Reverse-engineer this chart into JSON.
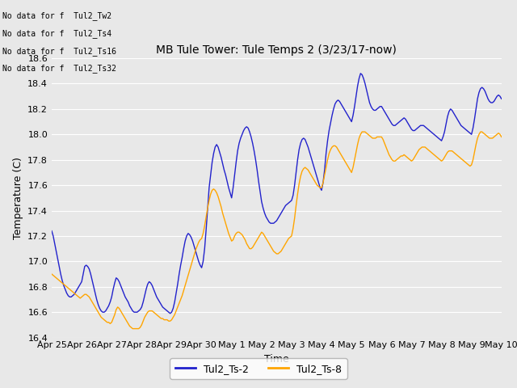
{
  "title": "MB Tule Tower: Tule Temps 2 (3/23/17-now)",
  "xlabel": "Time",
  "ylabel": "Temperature (C)",
  "ylim": [
    16.4,
    18.6
  ],
  "bg_color": "#e8e8e8",
  "line1_color": "#2222cc",
  "line2_color": "#ffa500",
  "legend_entries": [
    "Tul2_Ts-2",
    "Tul2_Ts-8"
  ],
  "no_data_texts": [
    "No data for f  Tul2_Tw2",
    "No data for f  Tul2_Ts4",
    "No data for f  Tul2_Ts16",
    "No data for f  Tul2_Ts32"
  ],
  "x_tick_labels": [
    "Apr 25",
    "Apr 26",
    "Apr 27",
    "Apr 28",
    "Apr 29",
    "Apr 30",
    "May 1",
    "May 2",
    "May 3",
    "May 4",
    "May 5",
    "May 6",
    "May 7",
    "May 8",
    "May 9",
    "May 10"
  ],
  "x_tick_positions": [
    0,
    1,
    2,
    3,
    4,
    5,
    6,
    7,
    8,
    9,
    10,
    11,
    12,
    13,
    14,
    15
  ],
  "ts2_x": [
    0.0,
    0.05,
    0.1,
    0.15,
    0.2,
    0.25,
    0.3,
    0.35,
    0.4,
    0.45,
    0.5,
    0.55,
    0.6,
    0.65,
    0.7,
    0.75,
    0.8,
    0.85,
    0.9,
    0.95,
    1.0,
    1.05,
    1.1,
    1.15,
    1.2,
    1.25,
    1.3,
    1.35,
    1.4,
    1.45,
    1.5,
    1.55,
    1.6,
    1.65,
    1.7,
    1.75,
    1.8,
    1.85,
    1.9,
    1.95,
    2.0,
    2.05,
    2.1,
    2.15,
    2.2,
    2.25,
    2.3,
    2.35,
    2.4,
    2.45,
    2.5,
    2.55,
    2.6,
    2.65,
    2.7,
    2.75,
    2.8,
    2.85,
    2.9,
    2.95,
    3.0,
    3.05,
    3.1,
    3.15,
    3.2,
    3.25,
    3.3,
    3.35,
    3.4,
    3.45,
    3.5,
    3.55,
    3.6,
    3.65,
    3.7,
    3.75,
    3.8,
    3.85,
    3.9,
    3.95,
    4.0,
    4.05,
    4.1,
    4.15,
    4.2,
    4.25,
    4.3,
    4.35,
    4.4,
    4.45,
    4.5,
    4.55,
    4.6,
    4.65,
    4.7,
    4.75,
    4.8,
    4.85,
    4.9,
    4.95,
    5.0,
    5.05,
    5.1,
    5.15,
    5.2,
    5.25,
    5.3,
    5.35,
    5.4,
    5.45,
    5.5,
    5.55,
    5.6,
    5.65,
    5.7,
    5.75,
    5.8,
    5.85,
    5.9,
    5.95,
    6.0,
    6.05,
    6.1,
    6.15,
    6.2,
    6.25,
    6.3,
    6.35,
    6.4,
    6.45,
    6.5,
    6.55,
    6.6,
    6.65,
    6.7,
    6.75,
    6.8,
    6.85,
    6.9,
    6.95,
    7.0,
    7.05,
    7.1,
    7.15,
    7.2,
    7.25,
    7.3,
    7.35,
    7.4,
    7.45,
    7.5,
    7.55,
    7.6,
    7.65,
    7.7,
    7.75,
    7.8,
    7.85,
    7.9,
    7.95,
    8.0,
    8.05,
    8.1,
    8.15,
    8.2,
    8.25,
    8.3,
    8.35,
    8.4,
    8.45,
    8.5,
    8.55,
    8.6,
    8.65,
    8.7,
    8.75,
    8.8,
    8.85,
    8.9,
    8.95,
    9.0,
    9.05,
    9.1,
    9.15,
    9.2,
    9.25,
    9.3,
    9.35,
    9.4,
    9.45,
    9.5,
    9.55,
    9.6,
    9.65,
    9.7,
    9.75,
    9.8,
    9.85,
    9.9,
    9.95,
    10.0,
    10.05,
    10.1,
    10.15,
    10.2,
    10.25,
    10.3,
    10.35,
    10.4,
    10.45,
    10.5,
    10.55,
    10.6,
    10.65,
    10.7,
    10.75,
    10.8,
    10.85,
    10.9,
    10.95,
    11.0,
    11.05,
    11.1,
    11.15,
    11.2,
    11.25,
    11.3,
    11.35,
    11.4,
    11.45,
    11.5,
    11.55,
    11.6,
    11.65,
    11.7,
    11.75,
    11.8,
    11.85,
    11.9,
    11.95,
    12.0,
    12.05,
    12.1,
    12.15,
    12.2,
    12.25,
    12.3,
    12.35,
    12.4,
    12.45,
    12.5,
    12.55,
    12.6,
    12.65,
    12.7,
    12.75,
    12.8,
    12.85,
    12.9,
    12.95,
    13.0,
    13.05,
    13.1,
    13.15,
    13.2,
    13.25,
    13.3,
    13.35,
    13.4,
    13.45,
    13.5,
    13.55,
    13.6,
    13.65,
    13.7,
    13.75,
    13.8,
    13.85,
    13.9,
    13.95,
    14.0,
    14.05,
    14.1,
    14.15,
    14.2,
    14.25,
    14.3,
    14.35,
    14.4,
    14.45,
    14.5,
    14.55,
    14.6,
    14.65,
    14.7,
    14.75,
    14.8,
    14.85,
    14.9,
    14.95,
    15.0
  ],
  "ts2_y": [
    17.24,
    17.2,
    17.14,
    17.08,
    17.02,
    16.96,
    16.9,
    16.85,
    16.81,
    16.78,
    16.75,
    16.73,
    16.72,
    16.72,
    16.73,
    16.74,
    16.76,
    16.78,
    16.8,
    16.82,
    16.84,
    16.9,
    16.96,
    16.97,
    16.96,
    16.94,
    16.9,
    16.85,
    16.8,
    16.75,
    16.7,
    16.66,
    16.63,
    16.61,
    16.6,
    16.6,
    16.61,
    16.63,
    16.65,
    16.68,
    16.72,
    16.78,
    16.83,
    16.87,
    16.86,
    16.84,
    16.81,
    16.78,
    16.75,
    16.72,
    16.7,
    16.68,
    16.65,
    16.63,
    16.61,
    16.6,
    16.6,
    16.6,
    16.61,
    16.62,
    16.64,
    16.68,
    16.73,
    16.78,
    16.82,
    16.84,
    16.83,
    16.81,
    16.78,
    16.75,
    16.72,
    16.7,
    16.68,
    16.66,
    16.64,
    16.63,
    16.62,
    16.61,
    16.6,
    16.59,
    16.6,
    16.63,
    16.68,
    16.75,
    16.82,
    16.9,
    16.97,
    17.03,
    17.1,
    17.16,
    17.2,
    17.22,
    17.21,
    17.19,
    17.16,
    17.12,
    17.08,
    17.04,
    17.0,
    16.97,
    16.95,
    17.0,
    17.1,
    17.25,
    17.42,
    17.58,
    17.68,
    17.78,
    17.85,
    17.9,
    17.92,
    17.9,
    17.86,
    17.82,
    17.77,
    17.72,
    17.68,
    17.63,
    17.58,
    17.54,
    17.5,
    17.58,
    17.68,
    17.78,
    17.87,
    17.93,
    17.97,
    18.0,
    18.03,
    18.05,
    18.06,
    18.05,
    18.02,
    17.98,
    17.93,
    17.87,
    17.8,
    17.72,
    17.63,
    17.55,
    17.47,
    17.42,
    17.38,
    17.35,
    17.33,
    17.31,
    17.3,
    17.3,
    17.3,
    17.31,
    17.32,
    17.34,
    17.36,
    17.38,
    17.4,
    17.42,
    17.44,
    17.45,
    17.46,
    17.47,
    17.48,
    17.52,
    17.6,
    17.7,
    17.8,
    17.88,
    17.93,
    17.96,
    17.97,
    17.96,
    17.93,
    17.9,
    17.86,
    17.82,
    17.78,
    17.74,
    17.7,
    17.66,
    17.62,
    17.58,
    17.56,
    17.62,
    17.72,
    17.85,
    17.95,
    18.03,
    18.09,
    18.15,
    18.2,
    18.24,
    18.26,
    18.27,
    18.26,
    18.24,
    18.22,
    18.2,
    18.18,
    18.16,
    18.14,
    18.12,
    18.1,
    18.15,
    18.22,
    18.3,
    18.38,
    18.44,
    18.48,
    18.47,
    18.44,
    18.4,
    18.35,
    18.3,
    18.25,
    18.22,
    18.2,
    18.19,
    18.19,
    18.2,
    18.21,
    18.22,
    18.22,
    18.2,
    18.18,
    18.16,
    18.14,
    18.12,
    18.1,
    18.08,
    18.07,
    18.07,
    18.08,
    18.09,
    18.1,
    18.11,
    18.12,
    18.13,
    18.12,
    18.1,
    18.08,
    18.06,
    18.04,
    18.03,
    18.03,
    18.04,
    18.05,
    18.06,
    18.07,
    18.07,
    18.07,
    18.06,
    18.05,
    18.04,
    18.03,
    18.02,
    18.01,
    18.0,
    17.99,
    17.98,
    17.97,
    17.96,
    17.95,
    17.98,
    18.02,
    18.08,
    18.14,
    18.18,
    18.2,
    18.19,
    18.17,
    18.15,
    18.13,
    18.11,
    18.09,
    18.07,
    18.06,
    18.05,
    18.04,
    18.03,
    18.02,
    18.01,
    18.0,
    18.05,
    18.12,
    18.2,
    18.28,
    18.33,
    18.36,
    18.37,
    18.36,
    18.34,
    18.31,
    18.28,
    18.26,
    18.25,
    18.25,
    18.26,
    18.28,
    18.3,
    18.31,
    18.3,
    18.28
  ],
  "ts8_x": [
    0.0,
    0.05,
    0.1,
    0.15,
    0.2,
    0.25,
    0.3,
    0.35,
    0.4,
    0.45,
    0.5,
    0.55,
    0.6,
    0.65,
    0.7,
    0.75,
    0.8,
    0.85,
    0.9,
    0.95,
    1.0,
    1.05,
    1.1,
    1.15,
    1.2,
    1.25,
    1.3,
    1.35,
    1.4,
    1.45,
    1.5,
    1.55,
    1.6,
    1.65,
    1.7,
    1.75,
    1.8,
    1.85,
    1.9,
    1.95,
    2.0,
    2.05,
    2.1,
    2.15,
    2.2,
    2.25,
    2.3,
    2.35,
    2.4,
    2.45,
    2.5,
    2.55,
    2.6,
    2.65,
    2.7,
    2.75,
    2.8,
    2.85,
    2.9,
    2.95,
    3.0,
    3.05,
    3.1,
    3.15,
    3.2,
    3.25,
    3.3,
    3.35,
    3.4,
    3.45,
    3.5,
    3.55,
    3.6,
    3.65,
    3.7,
    3.75,
    3.8,
    3.85,
    3.9,
    3.95,
    4.0,
    4.05,
    4.1,
    4.15,
    4.2,
    4.25,
    4.3,
    4.35,
    4.4,
    4.45,
    4.5,
    4.55,
    4.6,
    4.65,
    4.7,
    4.75,
    4.8,
    4.85,
    4.9,
    4.95,
    5.0,
    5.05,
    5.1,
    5.15,
    5.2,
    5.25,
    5.3,
    5.35,
    5.4,
    5.45,
    5.5,
    5.55,
    5.6,
    5.65,
    5.7,
    5.75,
    5.8,
    5.85,
    5.9,
    5.95,
    6.0,
    6.05,
    6.1,
    6.15,
    6.2,
    6.25,
    6.3,
    6.35,
    6.4,
    6.45,
    6.5,
    6.55,
    6.6,
    6.65,
    6.7,
    6.75,
    6.8,
    6.85,
    6.9,
    6.95,
    7.0,
    7.05,
    7.1,
    7.15,
    7.2,
    7.25,
    7.3,
    7.35,
    7.4,
    7.45,
    7.5,
    7.55,
    7.6,
    7.65,
    7.7,
    7.75,
    7.8,
    7.85,
    7.9,
    7.95,
    8.0,
    8.05,
    8.1,
    8.15,
    8.2,
    8.25,
    8.3,
    8.35,
    8.4,
    8.45,
    8.5,
    8.55,
    8.6,
    8.65,
    8.7,
    8.75,
    8.8,
    8.85,
    8.9,
    8.95,
    9.0,
    9.05,
    9.1,
    9.15,
    9.2,
    9.25,
    9.3,
    9.35,
    9.4,
    9.45,
    9.5,
    9.55,
    9.6,
    9.65,
    9.7,
    9.75,
    9.8,
    9.85,
    9.9,
    9.95,
    10.0,
    10.05,
    10.1,
    10.15,
    10.2,
    10.25,
    10.3,
    10.35,
    10.4,
    10.45,
    10.5,
    10.55,
    10.6,
    10.65,
    10.7,
    10.75,
    10.8,
    10.85,
    10.9,
    10.95,
    11.0,
    11.05,
    11.1,
    11.15,
    11.2,
    11.25,
    11.3,
    11.35,
    11.4,
    11.45,
    11.5,
    11.55,
    11.6,
    11.65,
    11.7,
    11.75,
    11.8,
    11.85,
    11.9,
    11.95,
    12.0,
    12.05,
    12.1,
    12.15,
    12.2,
    12.25,
    12.3,
    12.35,
    12.4,
    12.45,
    12.5,
    12.55,
    12.6,
    12.65,
    12.7,
    12.75,
    12.8,
    12.85,
    12.9,
    12.95,
    13.0,
    13.05,
    13.1,
    13.15,
    13.2,
    13.25,
    13.3,
    13.35,
    13.4,
    13.45,
    13.5,
    13.55,
    13.6,
    13.65,
    13.7,
    13.75,
    13.8,
    13.85,
    13.9,
    13.95,
    14.0,
    14.05,
    14.1,
    14.15,
    14.2,
    14.25,
    14.3,
    14.35,
    14.4,
    14.45,
    14.5,
    14.55,
    14.6,
    14.65,
    14.7,
    14.75,
    14.8,
    14.85,
    14.9,
    14.95,
    15.0
  ],
  "ts8_y": [
    16.9,
    16.89,
    16.88,
    16.87,
    16.86,
    16.85,
    16.84,
    16.83,
    16.82,
    16.81,
    16.8,
    16.79,
    16.78,
    16.77,
    16.76,
    16.75,
    16.74,
    16.73,
    16.72,
    16.71,
    16.72,
    16.73,
    16.74,
    16.74,
    16.73,
    16.72,
    16.7,
    16.68,
    16.66,
    16.64,
    16.62,
    16.6,
    16.58,
    16.56,
    16.55,
    16.54,
    16.53,
    16.52,
    16.52,
    16.51,
    16.52,
    16.55,
    16.58,
    16.62,
    16.64,
    16.63,
    16.61,
    16.59,
    16.57,
    16.55,
    16.53,
    16.51,
    16.49,
    16.48,
    16.47,
    16.47,
    16.47,
    16.47,
    16.47,
    16.48,
    16.5,
    16.53,
    16.56,
    16.58,
    16.6,
    16.61,
    16.61,
    16.61,
    16.6,
    16.59,
    16.58,
    16.57,
    16.56,
    16.55,
    16.55,
    16.54,
    16.54,
    16.54,
    16.53,
    16.53,
    16.54,
    16.56,
    16.58,
    16.61,
    16.64,
    16.67,
    16.7,
    16.73,
    16.77,
    16.81,
    16.85,
    16.89,
    16.93,
    16.97,
    17.01,
    17.05,
    17.09,
    17.12,
    17.15,
    17.17,
    17.18,
    17.22,
    17.28,
    17.35,
    17.42,
    17.48,
    17.53,
    17.56,
    17.57,
    17.56,
    17.54,
    17.51,
    17.47,
    17.43,
    17.38,
    17.34,
    17.3,
    17.26,
    17.22,
    17.19,
    17.16,
    17.17,
    17.2,
    17.22,
    17.23,
    17.23,
    17.22,
    17.21,
    17.19,
    17.17,
    17.14,
    17.12,
    17.1,
    17.1,
    17.11,
    17.13,
    17.15,
    17.17,
    17.19,
    17.21,
    17.23,
    17.22,
    17.2,
    17.18,
    17.16,
    17.14,
    17.12,
    17.1,
    17.08,
    17.07,
    17.06,
    17.06,
    17.07,
    17.08,
    17.1,
    17.12,
    17.14,
    17.16,
    17.18,
    17.19,
    17.2,
    17.26,
    17.34,
    17.44,
    17.53,
    17.61,
    17.67,
    17.71,
    17.73,
    17.74,
    17.73,
    17.72,
    17.7,
    17.68,
    17.66,
    17.64,
    17.62,
    17.6,
    17.59,
    17.58,
    17.58,
    17.62,
    17.68,
    17.74,
    17.8,
    17.85,
    17.88,
    17.9,
    17.91,
    17.91,
    17.9,
    17.88,
    17.86,
    17.84,
    17.82,
    17.8,
    17.78,
    17.76,
    17.74,
    17.72,
    17.7,
    17.74,
    17.8,
    17.86,
    17.92,
    17.97,
    18.0,
    18.02,
    18.02,
    18.02,
    18.01,
    18.0,
    17.99,
    17.98,
    17.97,
    17.97,
    17.97,
    17.98,
    17.98,
    17.98,
    17.98,
    17.96,
    17.93,
    17.9,
    17.87,
    17.84,
    17.82,
    17.8,
    17.79,
    17.79,
    17.8,
    17.81,
    17.82,
    17.83,
    17.83,
    17.84,
    17.83,
    17.82,
    17.81,
    17.8,
    17.79,
    17.8,
    17.82,
    17.84,
    17.86,
    17.88,
    17.89,
    17.9,
    17.9,
    17.9,
    17.89,
    17.88,
    17.87,
    17.86,
    17.85,
    17.84,
    17.83,
    17.82,
    17.81,
    17.8,
    17.79,
    17.8,
    17.82,
    17.84,
    17.86,
    17.87,
    17.87,
    17.87,
    17.86,
    17.85,
    17.84,
    17.83,
    17.82,
    17.81,
    17.8,
    17.79,
    17.78,
    17.77,
    17.76,
    17.75,
    17.76,
    17.8,
    17.86,
    17.92,
    17.97,
    18.0,
    18.02,
    18.02,
    18.01,
    18.0,
    17.99,
    17.98,
    17.97,
    17.97,
    17.97,
    17.98,
    17.99,
    18.0,
    18.01,
    18.0,
    17.98
  ]
}
